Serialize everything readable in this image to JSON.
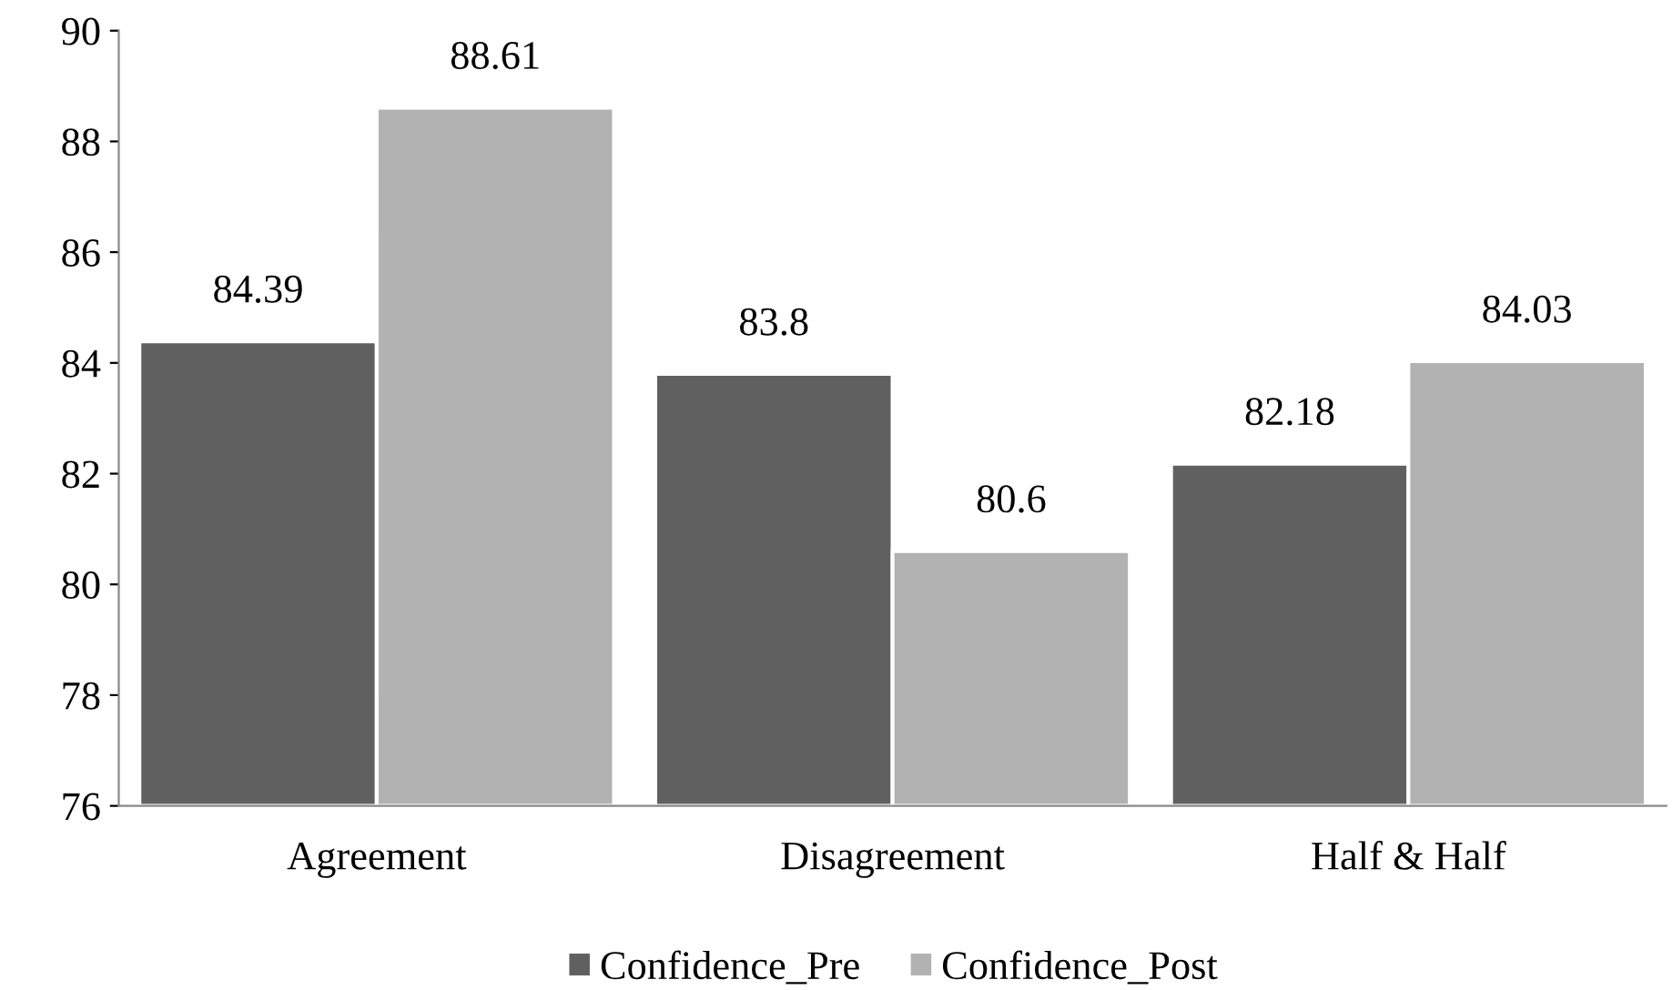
{
  "chart_data": {
    "type": "bar",
    "categories": [
      "Agreement",
      "Disagreement",
      "Half & Half"
    ],
    "series": [
      {
        "name": "Confidence_Pre",
        "color": "#606060",
        "values": [
          84.39,
          83.8,
          82.18
        ]
      },
      {
        "name": "Confidence_Post",
        "color": "#b2b2b2",
        "values": [
          88.61,
          80.6,
          84.03
        ]
      }
    ],
    "ylim": [
      76,
      90
    ],
    "yticks": [
      76,
      78,
      80,
      82,
      84,
      86,
      88,
      90
    ],
    "data_labels": true,
    "legend": "bottom",
    "grid": false
  }
}
